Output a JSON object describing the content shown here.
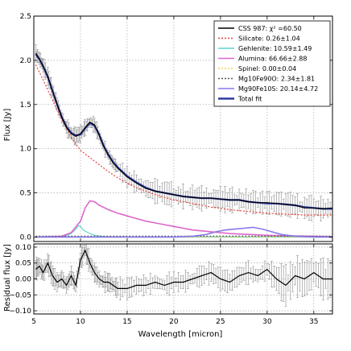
{
  "chart_data": [
    {
      "type": "line",
      "panel": "main",
      "xlabel": "",
      "ylabel": "Flux [Jy]",
      "xlim": [
        5,
        37
      ],
      "ylim": [
        -0.05,
        2.5
      ],
      "xticks": [
        5,
        10,
        15,
        20,
        25,
        30,
        35
      ],
      "yticks": [
        0.0,
        0.5,
        1.0,
        1.5,
        2.0,
        2.5
      ],
      "ytick_labels": [
        "0.0",
        "0.5",
        "1.0",
        "1.5",
        "2.0",
        "2.5"
      ],
      "grid": true,
      "legend_position": "top-right",
      "legend": [
        {
          "label": "CSS 987: χ² =60.50",
          "color": "#000000",
          "style": "solid"
        },
        {
          "label": "Silicate: 0.26±1.04",
          "color": "#e8423c",
          "style": "dotted"
        },
        {
          "label": "Gehlenite: 10.59±1.49",
          "color": "#5fd3d0",
          "style": "solid"
        },
        {
          "label": "Alumina: 66.66±2.88",
          "color": "#dd66cc",
          "style": "solid"
        },
        {
          "label": "Spinel: 0.00±0.04",
          "color": "#e8d44d",
          "style": "dotted"
        },
        {
          "label": "Mg10Fe90O: 2.34±1.81",
          "color": "#555555",
          "style": "dotted"
        },
        {
          "label": "Mg90Fe10S: 20.14±4.72",
          "color": "#8877ee",
          "style": "solid"
        },
        {
          "label": "Total fit",
          "color": "#2d3a9e",
          "style": "solid"
        }
      ],
      "series": [
        {
          "name": "CSS 987",
          "color": "#000000",
          "x": [
            5.2,
            5.6,
            6.0,
            6.5,
            7.0,
            7.5,
            8.0,
            8.5,
            9.0,
            9.5,
            10.0,
            10.5,
            11.0,
            11.5,
            12.0,
            12.5,
            13.0,
            13.5,
            14.0,
            15.0,
            16.0,
            17.0,
            18.0,
            19.0,
            20.0,
            21.0,
            22.0,
            23.0,
            24.0,
            25.0,
            26.0,
            27.0,
            28.0,
            29.0,
            30.0,
            31.0,
            32.0,
            33.0,
            34.0,
            35.0,
            36.0,
            37.0
          ],
          "y": [
            2.08,
            2.02,
            1.94,
            1.82,
            1.66,
            1.5,
            1.35,
            1.24,
            1.17,
            1.14,
            1.17,
            1.24,
            1.3,
            1.27,
            1.15,
            1.02,
            0.92,
            0.84,
            0.78,
            0.68,
            0.61,
            0.55,
            0.52,
            0.5,
            0.48,
            0.46,
            0.45,
            0.44,
            0.44,
            0.43,
            0.42,
            0.42,
            0.4,
            0.39,
            0.39,
            0.38,
            0.37,
            0.36,
            0.33,
            0.33,
            0.32,
            0.33
          ]
        },
        {
          "name": "Total fit",
          "color": "#2d3a9e",
          "x": [
            5.2,
            5.6,
            6.0,
            6.5,
            7.0,
            7.5,
            8.0,
            8.5,
            9.0,
            9.5,
            10.0,
            10.5,
            11.0,
            11.5,
            12.0,
            12.5,
            13.0,
            13.5,
            14.0,
            15.0,
            16.0,
            17.0,
            18.0,
            19.0,
            20.0,
            21.0,
            22.0,
            23.0,
            24.0,
            25.0,
            26.0,
            27.0,
            28.0,
            29.0,
            30.0,
            31.0,
            32.0,
            33.0,
            34.0,
            35.0,
            36.0,
            37.0
          ],
          "y": [
            2.07,
            2.01,
            1.93,
            1.81,
            1.65,
            1.5,
            1.36,
            1.25,
            1.18,
            1.15,
            1.16,
            1.23,
            1.29,
            1.26,
            1.16,
            1.03,
            0.93,
            0.85,
            0.79,
            0.69,
            0.62,
            0.56,
            0.52,
            0.5,
            0.48,
            0.46,
            0.45,
            0.44,
            0.44,
            0.43,
            0.42,
            0.42,
            0.4,
            0.39,
            0.38,
            0.38,
            0.37,
            0.36,
            0.34,
            0.33,
            0.32,
            0.32
          ]
        },
        {
          "name": "Silicate",
          "color": "#e8423c",
          "x": [
            5.2,
            6,
            7,
            8,
            9,
            10,
            11,
            12,
            13,
            14,
            15,
            16,
            18,
            20,
            22,
            24,
            26,
            28,
            30,
            32,
            34,
            36,
            37
          ],
          "y": [
            1.95,
            1.78,
            1.55,
            1.33,
            1.13,
            0.98,
            0.9,
            0.82,
            0.74,
            0.67,
            0.61,
            0.56,
            0.48,
            0.42,
            0.38,
            0.34,
            0.31,
            0.29,
            0.27,
            0.26,
            0.25,
            0.25,
            0.25
          ]
        },
        {
          "name": "Gehlenite",
          "color": "#5fd3d0",
          "x": [
            5.2,
            8,
            9,
            9.5,
            9.8,
            10.0,
            10.3,
            10.8,
            11.5,
            12.5,
            14,
            20,
            30,
            37
          ],
          "y": [
            0.0,
            0.0,
            0.04,
            0.09,
            0.13,
            0.12,
            0.08,
            0.05,
            0.02,
            0.005,
            0.0,
            0.0,
            0.0,
            0.0
          ]
        },
        {
          "name": "Alumina",
          "color": "#dd66cc",
          "x": [
            5.2,
            8,
            9,
            10,
            10.5,
            11.0,
            11.5,
            12,
            13,
            14,
            15,
            16,
            17,
            18,
            19,
            20,
            21,
            22,
            23,
            24,
            25,
            26,
            27,
            28,
            30,
            32,
            35,
            37
          ],
          "y": [
            0.0,
            0.01,
            0.05,
            0.18,
            0.33,
            0.41,
            0.4,
            0.36,
            0.31,
            0.27,
            0.24,
            0.21,
            0.18,
            0.16,
            0.14,
            0.12,
            0.1,
            0.08,
            0.07,
            0.06,
            0.05,
            0.04,
            0.035,
            0.03,
            0.02,
            0.015,
            0.01,
            0.005
          ]
        },
        {
          "name": "Spinel",
          "color": "#e8d44d",
          "x": [
            5.2,
            37
          ],
          "y": [
            0.0,
            0.0
          ]
        },
        {
          "name": "Mg10Fe90O",
          "color": "#555555",
          "x": [
            5.2,
            37
          ],
          "y": [
            0.01,
            0.01
          ]
        },
        {
          "name": "Mg90Fe10S",
          "color": "#8877ee",
          "x": [
            5.2,
            20,
            22,
            23.5,
            24.5,
            25.5,
            26.5,
            27.5,
            28.5,
            29.5,
            30.5,
            31.5,
            33,
            35,
            37
          ],
          "y": [
            0.0,
            0.0,
            0.01,
            0.03,
            0.06,
            0.08,
            0.09,
            0.1,
            0.11,
            0.09,
            0.06,
            0.03,
            0.01,
            0.0,
            0.0
          ]
        }
      ]
    },
    {
      "type": "line",
      "panel": "residual",
      "xlabel": "Wavelength [micron]",
      "ylabel": "Residual flux [Jy]",
      "xlim": [
        5,
        37
      ],
      "ylim": [
        -0.11,
        0.11
      ],
      "xticks": [
        5,
        10,
        15,
        20,
        25,
        30,
        35
      ],
      "yticks": [
        -0.1,
        -0.05,
        0.0,
        0.05,
        0.1
      ],
      "ytick_labels": [
        "−0.10",
        "−0.05",
        "0.00",
        "0.05",
        "0.10"
      ],
      "grid": true,
      "series": [
        {
          "name": "Residual",
          "color": "#000000",
          "x": [
            5.2,
            5.6,
            6.0,
            6.5,
            7.0,
            7.5,
            8.0,
            8.5,
            9.0,
            9.5,
            10.0,
            10.5,
            11.0,
            11.5,
            12.0,
            12.5,
            13.0,
            13.5,
            14.0,
            15.0,
            16.0,
            17.0,
            18.0,
            19.0,
            20.0,
            21.0,
            22.0,
            23.0,
            24.0,
            25.0,
            26.0,
            27.0,
            28.0,
            29.0,
            30.0,
            31.0,
            32.0,
            33.0,
            34.0,
            35.0,
            36.0,
            37.0
          ],
          "y": [
            0.03,
            0.04,
            0.02,
            0.05,
            0.01,
            -0.01,
            0.0,
            -0.02,
            0.01,
            -0.02,
            0.06,
            0.09,
            0.05,
            0.02,
            0.0,
            -0.01,
            -0.01,
            -0.02,
            -0.03,
            -0.03,
            -0.02,
            -0.02,
            -0.01,
            -0.02,
            -0.01,
            -0.01,
            0.0,
            0.01,
            0.02,
            0.0,
            -0.01,
            0.01,
            0.02,
            0.01,
            0.03,
            0.0,
            -0.02,
            0.01,
            0.0,
            0.02,
            0.0,
            0.0
          ]
        }
      ]
    }
  ]
}
